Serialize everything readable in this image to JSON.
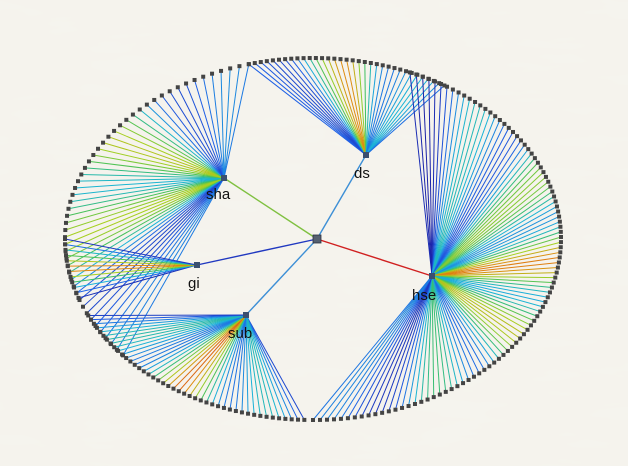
{
  "diagram": {
    "type": "radial-hierarchy",
    "colors": {
      "background": "#f3f1ea",
      "rim_marker": "#444444",
      "root_marker": "#556070",
      "hub_marker": "#3a4f70",
      "edge_sha": "#7fc040",
      "edge_ds": "#3d8fd6",
      "edge_gi": "#2038c0",
      "edge_sub": "#3d8fd6",
      "edge_hse": "#d02020",
      "leaf_gradient": [
        "#1a1aa0",
        "#1e5fe6",
        "#19b4d8",
        "#3ec060",
        "#a6d020",
        "#e08a10",
        "#d01818"
      ]
    },
    "hubs": [
      {
        "id": "sha",
        "label": "sha",
        "leaves": 52
      },
      {
        "id": "ds",
        "label": "ds",
        "leaves": 34
      },
      {
        "id": "gi",
        "label": "gi",
        "leaves": 12
      },
      {
        "id": "sub",
        "label": "sub",
        "leaves": 44
      },
      {
        "id": "hse",
        "label": "hse",
        "leaves": 98
      }
    ]
  }
}
